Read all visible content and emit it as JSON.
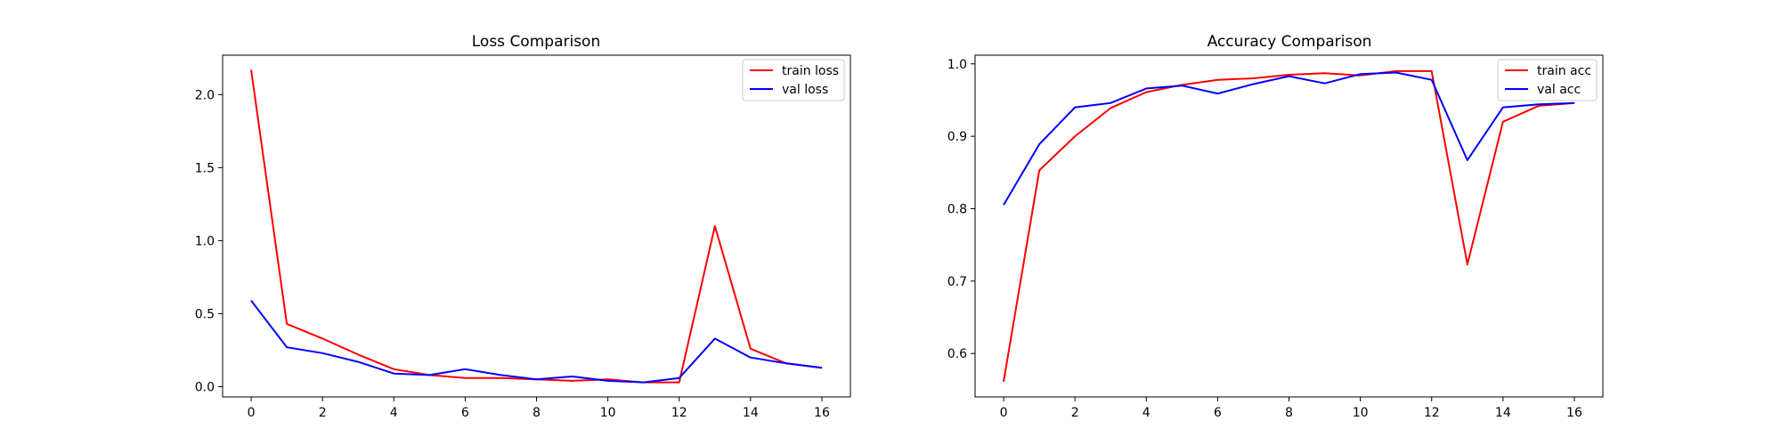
{
  "chart_data": [
    {
      "type": "line",
      "title": "Loss Comparison",
      "xlabel": "",
      "ylabel": "",
      "x": [
        0,
        1,
        2,
        3,
        4,
        5,
        6,
        7,
        8,
        9,
        10,
        11,
        12,
        13,
        14,
        15,
        16
      ],
      "xticks": [
        0,
        2,
        4,
        6,
        8,
        10,
        12,
        14,
        16
      ],
      "yticks": [
        0.0,
        0.5,
        1.0,
        1.5,
        2.0
      ],
      "ytick_labels": [
        "0.0",
        "0.5",
        "1.0",
        "1.5",
        "2.0"
      ],
      "xlim": [
        -0.8,
        16.8
      ],
      "ylim": [
        -0.07,
        2.27
      ],
      "grid": false,
      "legend_position": "top-right",
      "series": [
        {
          "name": "train loss",
          "color": "#ff0000",
          "values": [
            2.17,
            0.43,
            0.33,
            0.22,
            0.12,
            0.08,
            0.06,
            0.06,
            0.05,
            0.04,
            0.05,
            0.03,
            0.03,
            1.1,
            0.26,
            0.16,
            0.13
          ]
        },
        {
          "name": "val loss",
          "color": "#0000ff",
          "values": [
            0.59,
            0.27,
            0.23,
            0.17,
            0.09,
            0.08,
            0.12,
            0.08,
            0.05,
            0.07,
            0.04,
            0.03,
            0.06,
            0.33,
            0.2,
            0.16,
            0.13
          ]
        }
      ]
    },
    {
      "type": "line",
      "title": "Accuracy Comparison",
      "xlabel": "",
      "ylabel": "",
      "x": [
        0,
        1,
        2,
        3,
        4,
        5,
        6,
        7,
        8,
        9,
        10,
        11,
        12,
        13,
        14,
        15,
        16
      ],
      "xticks": [
        0,
        2,
        4,
        6,
        8,
        10,
        12,
        14,
        16
      ],
      "yticks": [
        0.6,
        0.7,
        0.8,
        0.9,
        1.0
      ],
      "ytick_labels": [
        "0.6",
        "0.7",
        "0.8",
        "0.9",
        "1.0"
      ],
      "xlim": [
        -0.8,
        16.8
      ],
      "ylim": [
        0.54,
        1.012
      ],
      "grid": false,
      "legend_position": "top-right",
      "series": [
        {
          "name": "train acc",
          "color": "#ff0000",
          "values": [
            0.561,
            0.853,
            0.9,
            0.939,
            0.961,
            0.971,
            0.978,
            0.98,
            0.985,
            0.987,
            0.984,
            0.99,
            0.99,
            0.723,
            0.92,
            0.942,
            0.946
          ]
        },
        {
          "name": "val acc",
          "color": "#0000ff",
          "values": [
            0.805,
            0.889,
            0.94,
            0.946,
            0.966,
            0.97,
            0.959,
            0.972,
            0.983,
            0.973,
            0.986,
            0.988,
            0.978,
            0.867,
            0.94,
            0.944,
            0.946
          ]
        }
      ]
    }
  ]
}
